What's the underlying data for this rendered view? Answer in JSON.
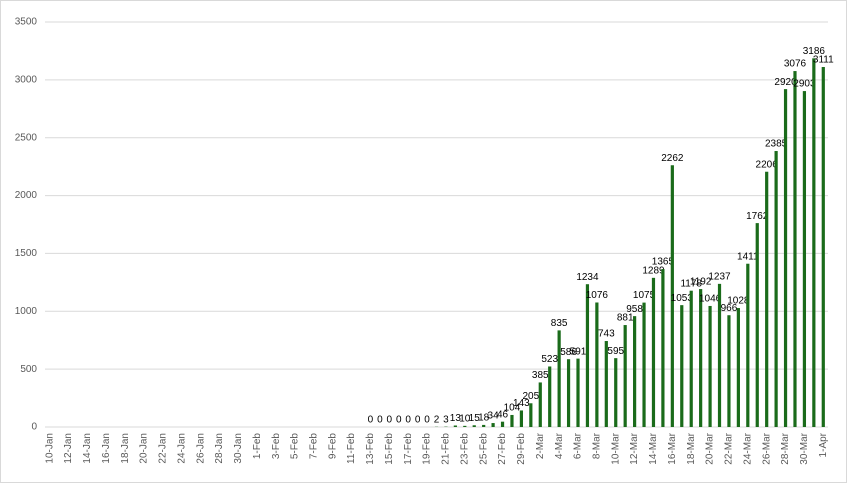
{
  "chart_data": {
    "type": "bar",
    "color": "#1a6b1a",
    "grid": true,
    "ylim": [
      0,
      3500
    ],
    "yticks": [
      0,
      500,
      1000,
      1500,
      2000,
      2500,
      3000,
      3500
    ],
    "categories": [
      "10-Jan",
      null,
      "12-Jan",
      null,
      "14-Jan",
      null,
      "16-Jan",
      null,
      "18-Jan",
      null,
      "20-Jan",
      null,
      "22-Jan",
      null,
      "24-Jan",
      null,
      "26-Jan",
      null,
      "28-Jan",
      null,
      "30-Jan",
      null,
      "1-Feb",
      null,
      "3-Feb",
      null,
      "5-Feb",
      null,
      "7-Feb",
      null,
      "9-Feb",
      null,
      "11-Feb",
      null,
      "13-Feb",
      null,
      "15-Feb",
      null,
      "17-Feb",
      null,
      "19-Feb",
      null,
      "21-Feb",
      null,
      "23-Feb",
      null,
      "25-Feb",
      null,
      "27-Feb",
      null,
      "29-Feb",
      null,
      "2-Mar",
      null,
      "4-Mar",
      null,
      "6-Mar",
      null,
      "8-Mar",
      null,
      "10-Mar",
      null,
      "12-Mar",
      null,
      "14-Mar",
      null,
      "16-Mar",
      null,
      "18-Mar",
      null,
      "20-Mar",
      null,
      "22-Mar",
      null,
      "24-Mar",
      null,
      "26-Mar",
      null,
      "28-Mar",
      null,
      "30-Mar",
      null,
      "1-Apr"
    ],
    "values": [
      null,
      null,
      null,
      null,
      null,
      null,
      null,
      null,
      null,
      null,
      null,
      null,
      null,
      null,
      null,
      null,
      null,
      null,
      null,
      null,
      null,
      null,
      null,
      null,
      null,
      null,
      null,
      null,
      null,
      null,
      null,
      null,
      null,
      null,
      0,
      0,
      0,
      0,
      0,
      0,
      0,
      2,
      3,
      13,
      10,
      15,
      18,
      34,
      46,
      104,
      143,
      205,
      385,
      523,
      835,
      586,
      591,
      1234,
      1076,
      743,
      595,
      881,
      958,
      1075,
      1289,
      1365,
      2262,
      1053,
      1178,
      1192,
      1046,
      1237,
      966,
      1028,
      1411,
      1762,
      2206,
      2385,
      2920,
      3076,
      2903,
      3186,
      3111
    ]
  }
}
